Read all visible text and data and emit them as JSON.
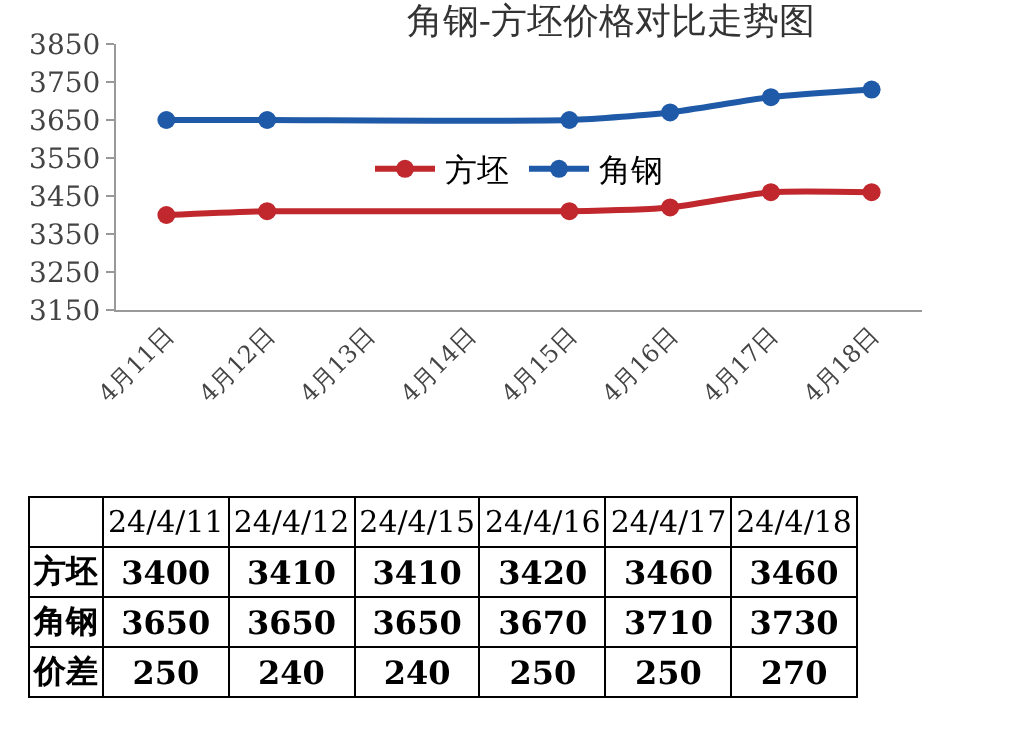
{
  "chart_data": [
    {
      "type": "line",
      "title": "角钢-方坯价格对比走势图",
      "categories": [
        "4月11日",
        "4月12日",
        "4月13日",
        "4月14日",
        "4月15日",
        "4月16日",
        "4月17日",
        "4月18日"
      ],
      "series": [
        {
          "name": "方坯",
          "color": "#c0282d",
          "values": [
            3400,
            3410,
            null,
            null,
            3410,
            3420,
            3460,
            3460
          ]
        },
        {
          "name": "角钢",
          "color": "#1f5aa8",
          "values": [
            3650,
            3650,
            null,
            null,
            3650,
            3670,
            3710,
            3730
          ]
        }
      ],
      "ylim": [
        3150,
        3850
      ],
      "yticks": [
        3150,
        3250,
        3350,
        3450,
        3550,
        3650,
        3750,
        3850
      ],
      "grid": false,
      "legend": "top",
      "marker": "circle",
      "line_style": "solid"
    },
    {
      "type": "other",
      "categories": [
        "24/4/11",
        "24/4/12",
        "24/4/15",
        "24/4/16",
        "24/4/17",
        "24/4/18"
      ],
      "series": [
        {
          "name": "方坯",
          "values": [
            3400,
            3410,
            3410,
            3420,
            3460,
            3460
          ]
        },
        {
          "name": "角钢",
          "values": [
            3650,
            3650,
            3650,
            3670,
            3710,
            3730
          ]
        },
        {
          "name": "价差",
          "values": [
            250,
            240,
            240,
            250,
            250,
            270
          ]
        }
      ],
      "data_labels": true
    }
  ]
}
